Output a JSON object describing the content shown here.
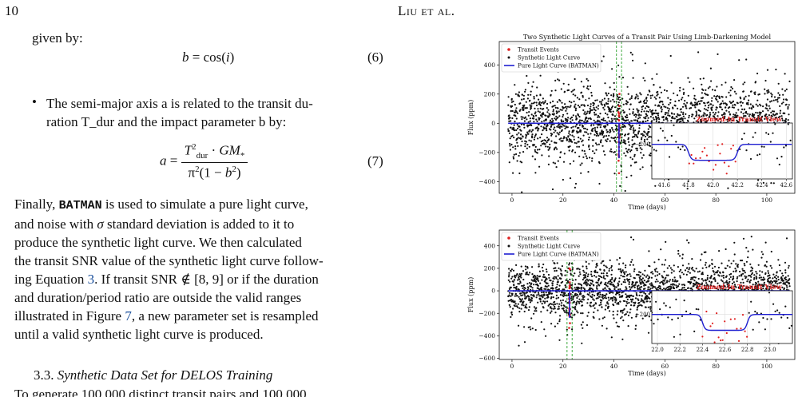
{
  "header": {
    "page_number": "10",
    "running_head": "Liu et al."
  },
  "text": {
    "given_by": "given by:",
    "eq6": "b = cos(i)",
    "eq6_num": "(6)",
    "bullet_line1": "The semi-major axis a is related to the transit du-",
    "bullet_line2": "ration T_dur and the impact parameter b by:",
    "eq7_lhs": "a =",
    "eq7_num_tex": "T²_dur · GM*",
    "eq7_den": "π²(1 − b²)",
    "eq7_num": "(7)",
    "para_lines": [
      "Finally, BATMAN is used to simulate a pure light curve,",
      "and noise with σ standard deviation is added to it to",
      "produce the synthetic light curve. We then calculated",
      "the transit SNR value of the synthetic light curve follow-",
      "ing Equation 3. If transit SNR ∉ [8, 9] or if the duration",
      "and duration/period ratio are outside the valid ranges",
      "illustrated in Figure 7, a new parameter set is resampled",
      "until a valid synthetic light curve is produced."
    ],
    "section_heading": "3.3. Synthetic Data Set for DELOS Training",
    "cutoff_line": "To generate 100,000 distinct transit pairs and 100,000"
  },
  "figure": {
    "colors": {
      "points": "#111111",
      "transit": "#e02020",
      "model": "#1f1fd0",
      "vline": "#2ca02c",
      "zoom_text": "#e02020"
    },
    "legend": [
      "Transit Events",
      "Synthetic Light Curve",
      "Pure Light Curve (BATMAN)"
    ],
    "zoom_label": "Zoomed-In Transit View"
  },
  "chart_data": [
    {
      "type": "scatter",
      "title": "Two Synthetic Light Curves of a Transit Pair Using Limb-Darkening Model",
      "xlabel": "Time (days)",
      "ylabel": "Flux (ppm)",
      "xlim": [
        -5,
        111
      ],
      "ylim": [
        -480,
        560
      ],
      "x_ticks": [
        0,
        20,
        40,
        60,
        80,
        100
      ],
      "y_ticks": [
        -400,
        -200,
        0,
        200,
        400
      ],
      "series": [
        {
          "name": "Synthetic Light Curve",
          "noise_sigma_ppm": 130,
          "cadence_days": 0.018
        },
        {
          "name": "Pure Light Curve (BATMAN)",
          "baseline": 0
        },
        {
          "name": "Transit Events",
          "x_center": 42.0
        }
      ],
      "transit_center": 42.0,
      "transit_depth": 60,
      "transit_duration": 0.4,
      "inset": {
        "xlim": [
          41.5,
          42.65
        ],
        "ylim": [
          -330,
          -120
        ],
        "x_ticks": [
          41.6,
          41.8,
          42.0,
          42.2,
          42.4,
          42.6
        ],
        "y_ticks": [
          -200
        ]
      },
      "legend_position": "upper-left"
    },
    {
      "type": "scatter",
      "xlabel": "Time (days)",
      "ylabel": "Flux (ppm)",
      "xlim": [
        -5,
        111
      ],
      "ylim": [
        -610,
        540
      ],
      "x_ticks": [
        0,
        20,
        40,
        60,
        80,
        100
      ],
      "y_ticks": [
        -600,
        -400,
        -200,
        0,
        200,
        400
      ],
      "series": [
        {
          "name": "Synthetic Light Curve",
          "noise_sigma_ppm": 130,
          "cadence_days": 0.018
        },
        {
          "name": "Pure Light Curve (BATMAN)",
          "baseline": 0
        },
        {
          "name": "Transit Events",
          "x_center": 22.6
        }
      ],
      "transit_center": 22.6,
      "transit_depth": 60,
      "transit_duration": 0.4,
      "inset": {
        "xlim": [
          21.95,
          23.2
        ],
        "ylim": [
          -310,
          -110
        ],
        "x_ticks": [
          22.0,
          22.2,
          22.4,
          22.6,
          22.8,
          23.0
        ],
        "y_ticks": [
          -200
        ]
      },
      "legend_position": "upper-left"
    }
  ]
}
